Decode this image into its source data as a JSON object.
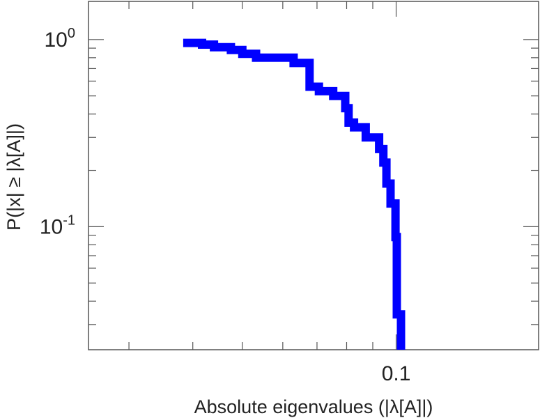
{
  "chart_data": {
    "type": "line",
    "title": "",
    "xlabel": "Absolute eigenvalues (|λ[A]|)",
    "ylabel": "P(|x| ≥ |λ[A]|)",
    "x_scale": "log",
    "y_scale": "log",
    "xlim": [
      0.025,
      0.19
    ],
    "ylim": [
      0.022,
      1.6
    ],
    "x_ticks": [
      {
        "value": 0.1,
        "label": "0.1"
      }
    ],
    "y_ticks": [
      {
        "value": 1,
        "base": "10",
        "exp": "0"
      },
      {
        "value": 0.1,
        "base": "10",
        "exp": "-1"
      }
    ],
    "grid": false,
    "series": [
      {
        "color": "#0000ff",
        "x": [
          0.0383,
          0.0417,
          0.044,
          0.0475,
          0.05,
          0.0532,
          0.063,
          0.0677,
          0.0706,
          0.0753,
          0.0795,
          0.0807,
          0.0827,
          0.0872,
          0.0926,
          0.0944,
          0.0957,
          0.0975,
          0.0997,
          0.1003,
          0.1022
        ],
        "y": [
          0.96,
          0.94,
          0.91,
          0.88,
          0.84,
          0.8,
          0.75,
          0.56,
          0.53,
          0.5,
          0.43,
          0.36,
          0.34,
          0.3,
          0.26,
          0.22,
          0.17,
          0.133,
          0.088,
          0.034,
          0.023
        ]
      }
    ]
  }
}
